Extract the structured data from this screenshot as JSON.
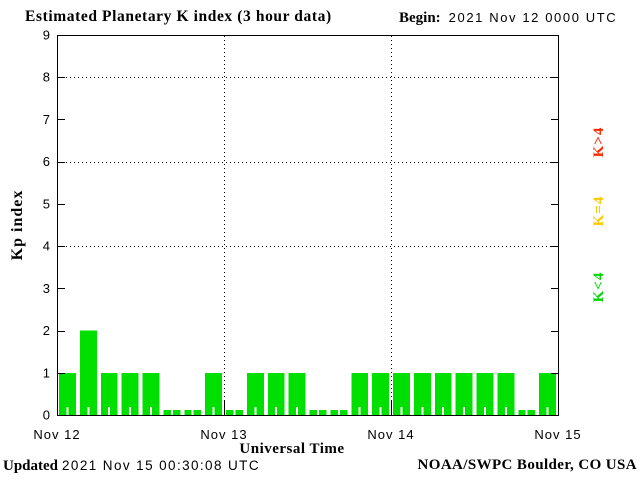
{
  "header": {
    "title": "Estimated Planetary K index (3 hour data)",
    "begin_label": "Begin:",
    "begin_value": "2021 Nov 12 0000 UTC"
  },
  "footer": {
    "updated_label": "Updated",
    "updated_value": "2021 Nov 15 00:30:08 UTC",
    "source": "NOAA/SWPC Boulder, CO USA"
  },
  "chart_data": {
    "type": "bar",
    "title": "Estimated Planetary K index (3 hour data)",
    "begin": "2021 Nov 12 0000 UTC",
    "interval_hours": 3,
    "xlabel": "Universal Time",
    "ylabel": "Kp index",
    "ylim": [
      0,
      9
    ],
    "yticks": [
      0,
      1,
      2,
      3,
      4,
      5,
      6,
      7,
      8,
      9
    ],
    "grid_y_dotted": [
      4,
      6,
      8
    ],
    "xticklabels": [
      "Nov 12",
      "Nov 13",
      "Nov 14",
      "Nov 15"
    ],
    "categories": [
      "Nov 12 0000",
      "Nov 12 0300",
      "Nov 12 0600",
      "Nov 12 0900",
      "Nov 12 1200",
      "Nov 12 1500",
      "Nov 12 1800",
      "Nov 12 2100",
      "Nov 13 0000",
      "Nov 13 0300",
      "Nov 13 0600",
      "Nov 13 0900",
      "Nov 13 1200",
      "Nov 13 1500",
      "Nov 13 1800",
      "Nov 13 2100",
      "Nov 14 0000",
      "Nov 14 0300",
      "Nov 14 0600",
      "Nov 14 0900",
      "Nov 14 1200",
      "Nov 14 1500",
      "Nov 14 1800",
      "Nov 14 2100"
    ],
    "values": [
      1,
      2,
      1,
      1,
      1,
      0,
      0,
      1,
      0,
      1,
      1,
      1,
      0,
      0,
      1,
      1,
      1,
      1,
      1,
      1,
      1,
      1,
      0,
      1
    ],
    "bar_color": "#00e000",
    "legend_position": "right",
    "legend": [
      {
        "label": "K>4",
        "color": "#ff2a00"
      },
      {
        "label": "K=4",
        "color": "#ffc800"
      },
      {
        "label": "K<4",
        "color": "#00d500"
      }
    ]
  }
}
